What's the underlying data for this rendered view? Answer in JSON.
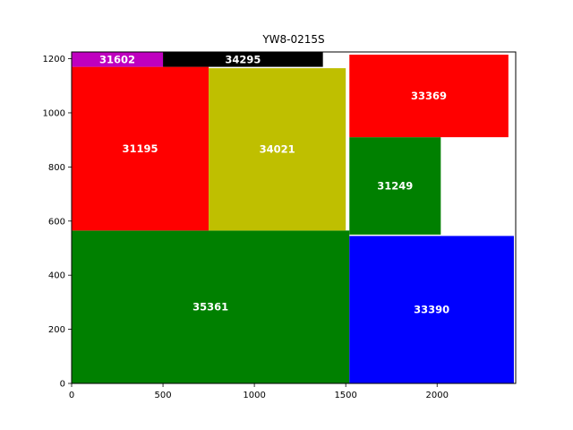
{
  "chart_data": {
    "type": "treemap",
    "title": "YW8-0215S",
    "xlabel": "",
    "ylabel": "",
    "xlim": [
      0,
      2430
    ],
    "ylim": [
      0,
      1225
    ],
    "xticks": [
      0,
      500,
      1000,
      1500,
      2000
    ],
    "yticks": [
      0,
      200,
      400,
      600,
      800,
      1000,
      1200
    ],
    "grid": false,
    "rectangles": [
      {
        "label": "35361",
        "x0": 0,
        "x1": 1520,
        "y0": 0,
        "y1": 565,
        "color": "#008000"
      },
      {
        "label": "33390",
        "x0": 1520,
        "x1": 2420,
        "y0": 0,
        "y1": 545,
        "color": "#0000ff"
      },
      {
        "label": "31195",
        "x0": 0,
        "x1": 750,
        "y0": 565,
        "y1": 1170,
        "color": "#ff0000"
      },
      {
        "label": "34021",
        "x0": 750,
        "x1": 1500,
        "y0": 565,
        "y1": 1165,
        "color": "#bfbf00"
      },
      {
        "label": "31249",
        "x0": 1520,
        "x1": 2020,
        "y0": 550,
        "y1": 910,
        "color": "#008000"
      },
      {
        "label": "33369",
        "x0": 1520,
        "x1": 2390,
        "y0": 910,
        "y1": 1215,
        "color": "#ff0000"
      },
      {
        "label": "31602",
        "x0": 0,
        "x1": 500,
        "y0": 1170,
        "y1": 1225,
        "color": "#bf00bf"
      },
      {
        "label": "34295",
        "x0": 500,
        "x1": 1375,
        "y0": 1170,
        "y1": 1225,
        "color": "#000000"
      }
    ]
  }
}
